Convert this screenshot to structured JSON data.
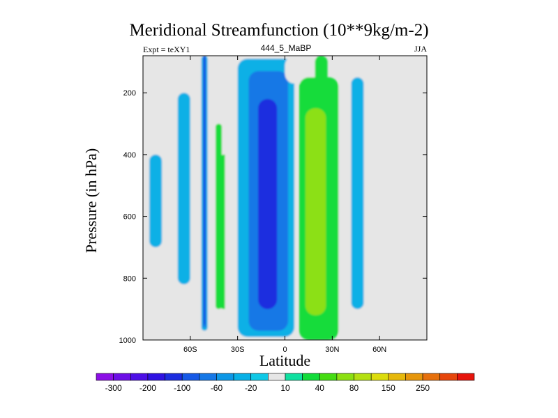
{
  "chart_data": {
    "type": "heatmap",
    "title": "Meridional Streamfunction (10**9kg/m-2)",
    "subtitle_left": "Expt = teXY1",
    "subtitle_center": "444_5_MaBP",
    "subtitle_right": "JJA",
    "xlabel": "Latitude",
    "ylabel": "Pressure (in hPa)",
    "xlim": [
      -90,
      90
    ],
    "ylim": [
      1000,
      80
    ],
    "x_ticks": [
      {
        "value": -60,
        "label": "60S"
      },
      {
        "value": -30,
        "label": "30S"
      },
      {
        "value": 0,
        "label": "0"
      },
      {
        "value": 30,
        "label": "30N"
      },
      {
        "value": 60,
        "label": "60N"
      }
    ],
    "y_ticks": [
      {
        "value": 200,
        "label": "200"
      },
      {
        "value": 400,
        "label": "400"
      },
      {
        "value": 600,
        "label": "600"
      },
      {
        "value": 800,
        "label": "800"
      },
      {
        "value": 1000,
        "label": "1000"
      }
    ],
    "colorbar": {
      "labels": [
        "-300",
        "-200",
        "-100",
        "-60",
        "-20",
        "10",
        "40",
        "80",
        "150",
        "250"
      ],
      "colors": [
        "#8c0fe6",
        "#6d0fe6",
        "#4d0fe6",
        "#2f12e2",
        "#1c2ddf",
        "#1659e6",
        "#1678e6",
        "#0d97e6",
        "#08b0e6",
        "#10c8e6",
        "#e6e6e6",
        "#10e0a0",
        "#12dc3a",
        "#45dc12",
        "#8ce012",
        "#b4e012",
        "#dcdc0c",
        "#e6b80c",
        "#e6960c",
        "#e6700c",
        "#e6460c",
        "#e6140c"
      ]
    },
    "cells": [
      {
        "x": [
          -88,
          -75
        ],
        "p": [
          80,
          960
        ],
        "value": -10
      },
      {
        "x": [
          -86,
          -78
        ],
        "p": [
          400,
          700
        ],
        "value": -25
      },
      {
        "x": [
          -74,
          -70
        ],
        "p": [
          80,
          1000
        ],
        "value": 0
      },
      {
        "x": [
          -70,
          -57
        ],
        "p": [
          80,
          950
        ],
        "value": -10
      },
      {
        "x": [
          -68,
          -60
        ],
        "p": [
          200,
          820
        ],
        "value": -25
      },
      {
        "x": [
          -57,
          -55
        ],
        "p": [
          80,
          1000
        ],
        "value": 0
      },
      {
        "x": [
          -55,
          -48
        ],
        "p": [
          80,
          980
        ],
        "value": -10
      },
      {
        "x": [
          -53,
          -49
        ],
        "p": [
          80,
          970
        ],
        "value": -40
      },
      {
        "x": [
          -52,
          -50
        ],
        "p": [
          80,
          960
        ],
        "value": -80
      },
      {
        "x": [
          -51.4,
          -50.6
        ],
        "p": [
          80,
          950
        ],
        "value": -150
      },
      {
        "x": [
          -48,
          -46
        ],
        "p": [
          80,
          1000
        ],
        "value": 0
      },
      {
        "x": [
          -46,
          -33
        ],
        "p": [
          80,
          960
        ],
        "value": -10
      },
      {
        "x": [
          -44,
          -40
        ],
        "p": [
          300,
          900
        ],
        "value": 15
      },
      {
        "x": [
          -43,
          -34
        ],
        "p": [
          400,
          900
        ],
        "value": 25
      },
      {
        "x": [
          -38,
          -24
        ],
        "p": [
          80,
          990
        ],
        "value": -10
      },
      {
        "x": [
          -34,
          8
        ],
        "p": [
          80,
          1000
        ],
        "value": -10
      },
      {
        "x": [
          -30,
          6
        ],
        "p": [
          90,
          990
        ],
        "value": -25
      },
      {
        "x": [
          -27,
          4
        ],
        "p": [
          110,
          980
        ],
        "value": -45
      },
      {
        "x": [
          -23,
          2
        ],
        "p": [
          130,
          970
        ],
        "value": -70
      },
      {
        "x": [
          -21,
          0
        ],
        "p": [
          150,
          955
        ],
        "value": -85
      },
      {
        "x": [
          -19,
          -3
        ],
        "p": [
          180,
          930
        ],
        "value": -95
      },
      {
        "x": [
          -17,
          -5
        ],
        "p": [
          220,
          900
        ],
        "value": -120
      },
      {
        "x": [
          0,
          22
        ],
        "p": [
          80,
          170
        ],
        "value": 0
      },
      {
        "x": [
          9,
          34
        ],
        "p": [
          150,
          1000
        ],
        "value": 15
      },
      {
        "x": [
          11,
          30
        ],
        "p": [
          170,
          970
        ],
        "value": 25
      },
      {
        "x": [
          13,
          26
        ],
        "p": [
          250,
          920
        ],
        "value": 45
      },
      {
        "x": [
          19,
          27
        ],
        "p": [
          80,
          250
        ],
        "value": 15
      },
      {
        "x": [
          34,
          39
        ],
        "p": [
          80,
          1000
        ],
        "value": 0
      },
      {
        "x": [
          39,
          54
        ],
        "p": [
          80,
          960
        ],
        "value": -10
      },
      {
        "x": [
          42,
          50
        ],
        "p": [
          150,
          900
        ],
        "value": -25
      },
      {
        "x": [
          54,
          90
        ],
        "p": [
          80,
          1000
        ],
        "value": 0
      }
    ]
  }
}
